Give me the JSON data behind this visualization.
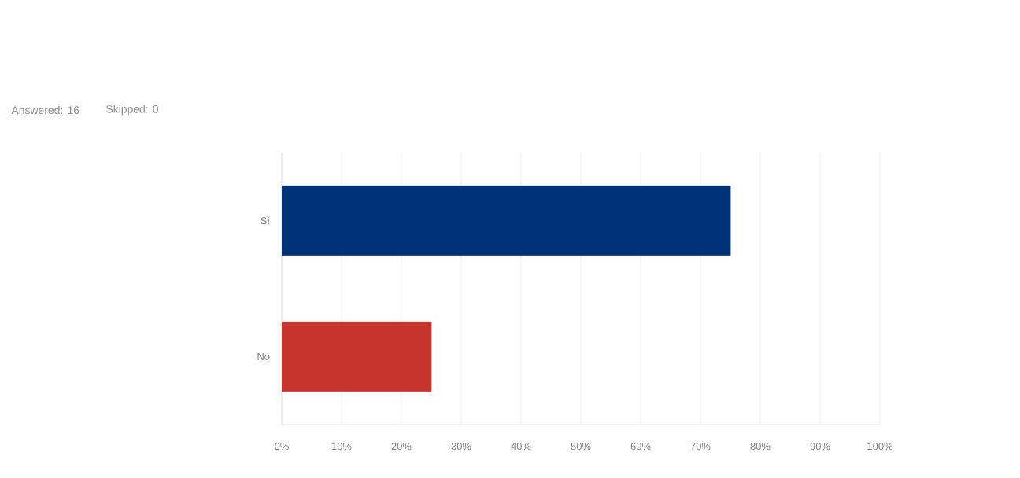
{
  "chart_data": {
    "type": "bar",
    "orientation": "horizontal",
    "annotations": [
      "Answered: 16",
      "Skipped: 0"
    ],
    "categories": [
      "Sí",
      "No"
    ],
    "values": [
      75,
      25
    ],
    "colors": [
      "#00327a",
      "#c5352b"
    ],
    "xlim": [
      0,
      100
    ],
    "xticks": [
      {
        "value": 0,
        "label": "0%"
      },
      {
        "value": 10,
        "label": "10%"
      },
      {
        "value": 20,
        "label": "20%"
      },
      {
        "value": 30,
        "label": "30%"
      },
      {
        "value": 40,
        "label": "40%"
      },
      {
        "value": 50,
        "label": "50%"
      },
      {
        "value": 60,
        "label": "60%"
      },
      {
        "value": 70,
        "label": "70%"
      },
      {
        "value": 80,
        "label": "80%"
      },
      {
        "value": 90,
        "label": "90%"
      },
      {
        "value": 100,
        "label": "100%"
      }
    ],
    "grid": "x"
  }
}
